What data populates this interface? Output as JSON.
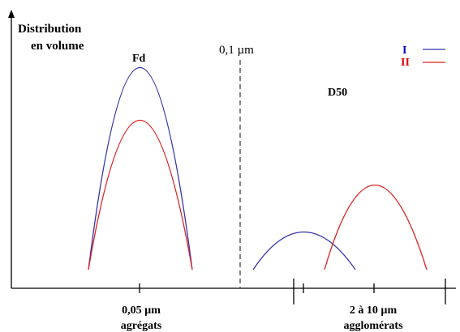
{
  "labels": {
    "yaxis_line1": "Distribution",
    "yaxis_line2": "en volume",
    "fd": "Fd",
    "threshold": "0,1 µm",
    "d50": "D50",
    "left_size": "0,05 µm",
    "left_name": "agrégats",
    "right_size": "2 à 10 µm",
    "right_name": "agglomérats"
  },
  "legend": [
    {
      "label": "I",
      "color": "#0000cc"
    },
    {
      "label": "II",
      "color": "#dd0000"
    }
  ],
  "colors": {
    "axis": "#000000",
    "series_I": "#3333aa",
    "series_II": "#dd2222"
  }
}
